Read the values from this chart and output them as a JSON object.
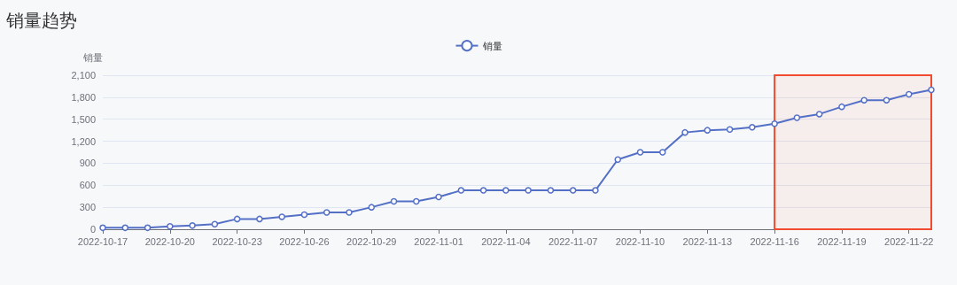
{
  "chart_data": {
    "type": "line",
    "title": "销量趋势",
    "ylabel": "销量",
    "legend": "top",
    "marker": "circle",
    "grid": "y",
    "x": [
      "2022-10-17",
      "2022-10-18",
      "2022-10-19",
      "2022-10-20",
      "2022-10-21",
      "2022-10-22",
      "2022-10-23",
      "2022-10-24",
      "2022-10-25",
      "2022-10-26",
      "2022-10-27",
      "2022-10-28",
      "2022-10-29",
      "2022-10-30",
      "2022-10-31",
      "2022-11-01",
      "2022-11-02",
      "2022-11-03",
      "2022-11-04",
      "2022-11-05",
      "2022-11-06",
      "2022-11-07",
      "2022-11-08",
      "2022-11-09",
      "2022-11-10",
      "2022-11-11",
      "2022-11-12",
      "2022-11-13",
      "2022-11-14",
      "2022-11-15",
      "2022-11-16",
      "2022-11-17",
      "2022-11-18",
      "2022-11-19",
      "2022-11-20",
      "2022-11-21",
      "2022-11-22",
      "2022-11-23"
    ],
    "series": [
      {
        "name": "销量",
        "color": "#5470c6",
        "values": [
          20,
          20,
          20,
          40,
          50,
          70,
          140,
          140,
          170,
          200,
          230,
          230,
          300,
          380,
          380,
          440,
          530,
          530,
          530,
          530,
          530,
          530,
          530,
          950,
          1050,
          1050,
          1320,
          1350,
          1360,
          1390,
          1440,
          1520,
          1570,
          1670,
          1760,
          1760,
          1840,
          1900
        ]
      }
    ],
    "xlim": [
      "2022-10-17",
      "2022-11-23"
    ],
    "xticks": [
      "2022-10-17",
      "2022-10-20",
      "2022-10-23",
      "2022-10-26",
      "2022-10-29",
      "2022-11-01",
      "2022-11-04",
      "2022-11-07",
      "2022-11-10",
      "2022-11-13",
      "2022-11-16",
      "2022-11-19",
      "2022-11-22"
    ],
    "bands": [
      {
        "axis": "x",
        "from": "2022-11-16",
        "to": "2022-11-23",
        "color": "#f04a2f"
      }
    ],
    "ylim": [
      0,
      2100
    ],
    "yticks": [
      0,
      300,
      600,
      900,
      {
        "value": 1200,
        "label": "1,200"
      },
      {
        "value": 1500,
        "label": "1,500"
      },
      {
        "value": 1800,
        "label": "1,800"
      },
      {
        "value": 2100,
        "label": "2,100"
      }
    ]
  }
}
